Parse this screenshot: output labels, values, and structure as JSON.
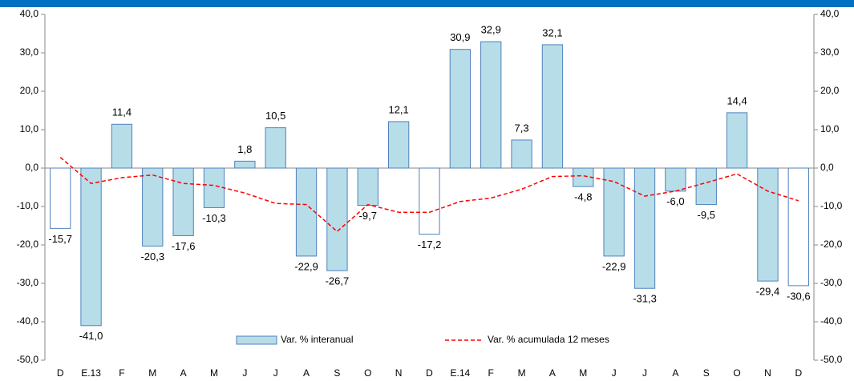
{
  "chart_data": {
    "type": "bar_line",
    "categories": [
      "D",
      "E.13",
      "F",
      "M",
      "A",
      "M",
      "J",
      "J",
      "A",
      "S",
      "O",
      "N",
      "D",
      "E.14",
      "F",
      "M",
      "A",
      "M",
      "J",
      "J",
      "A",
      "S",
      "O",
      "N",
      "D"
    ],
    "series": [
      {
        "name": "Var. % interanual",
        "type": "bar",
        "color": "#b7dde8",
        "edge_color": "#4f81bd",
        "point_colors": [
          "#ffffff",
          "#b7dde8",
          "#b7dde8",
          "#b7dde8",
          "#b7dde8",
          "#b7dde8",
          "#b7dde8",
          "#b7dde8",
          "#b7dde8",
          "#b7dde8",
          "#b7dde8",
          "#b7dde8",
          "#ffffff",
          "#b7dde8",
          "#b7dde8",
          "#b7dde8",
          "#b7dde8",
          "#b7dde8",
          "#b7dde8",
          "#b7dde8",
          "#b7dde8",
          "#b7dde8",
          "#b7dde8",
          "#b7dde8",
          "#ffffff"
        ],
        "values": [
          -15.7,
          -41.0,
          11.4,
          -20.3,
          -17.6,
          -10.3,
          1.8,
          10.5,
          -22.9,
          -26.7,
          -9.7,
          12.1,
          -17.2,
          30.9,
          32.9,
          7.3,
          32.1,
          -4.8,
          -22.9,
          -31.3,
          -6.0,
          -9.5,
          14.4,
          -29.4,
          -30.6
        ],
        "value_labels": [
          "-15,7",
          "-41,0",
          "11,4",
          "-20,3",
          "-17,6",
          "-10,3",
          "1,8",
          "10,5",
          "-22,9",
          "-26,7",
          "-9,7",
          "12,1",
          "-17,2",
          "30,9",
          "32,9",
          "7,3",
          "32,1",
          "-4,8",
          "-22,9",
          "-31,3",
          "-6,0",
          "-9,5",
          "14,4",
          "-29,4",
          "-30,6"
        ]
      },
      {
        "name": "Var. % acumulada 12 meses",
        "type": "line",
        "color": "#ff0000",
        "dashed": true,
        "values": [
          2.8,
          -4.0,
          -2.5,
          -1.8,
          -4.0,
          -4.5,
          -6.5,
          -9.2,
          -9.5,
          -16.5,
          -9.5,
          -11.5,
          -11.5,
          -8.7,
          -7.8,
          -5.5,
          -2.2,
          -2.0,
          -3.5,
          -7.3,
          -6.0,
          -3.8,
          -1.5,
          -6.0,
          -8.5
        ]
      }
    ],
    "ylim": [
      -50,
      40
    ],
    "yticks": [
      {
        "value": -50,
        "label": "-50,0"
      },
      {
        "value": -40,
        "label": "-40,0"
      },
      {
        "value": -30,
        "label": "-30,0"
      },
      {
        "value": -20,
        "label": "-20,0"
      },
      {
        "value": -10,
        "label": "-10,0"
      },
      {
        "value": 0,
        "label": "0,0"
      },
      {
        "value": 10,
        "label": "10,0"
      },
      {
        "value": 20,
        "label": "20,0"
      },
      {
        "value": 30,
        "label": "30,0"
      },
      {
        "value": 40,
        "label": "40,0"
      }
    ],
    "y2lim": [
      -50,
      40
    ],
    "y2ticks": [
      {
        "value": -50,
        "label": "-50,0"
      },
      {
        "value": -40,
        "label": "-40,0"
      },
      {
        "value": -30,
        "label": "-30,0"
      },
      {
        "value": -20,
        "label": "-20,0"
      },
      {
        "value": -10,
        "label": "-10,0"
      },
      {
        "value": 0,
        "label": "0,0"
      },
      {
        "value": 10,
        "label": "10,0"
      },
      {
        "value": 20,
        "label": "20,0"
      },
      {
        "value": 30,
        "label": "30,0"
      },
      {
        "value": 40,
        "label": "40,0"
      }
    ],
    "grid": false,
    "legend": "bottom"
  }
}
